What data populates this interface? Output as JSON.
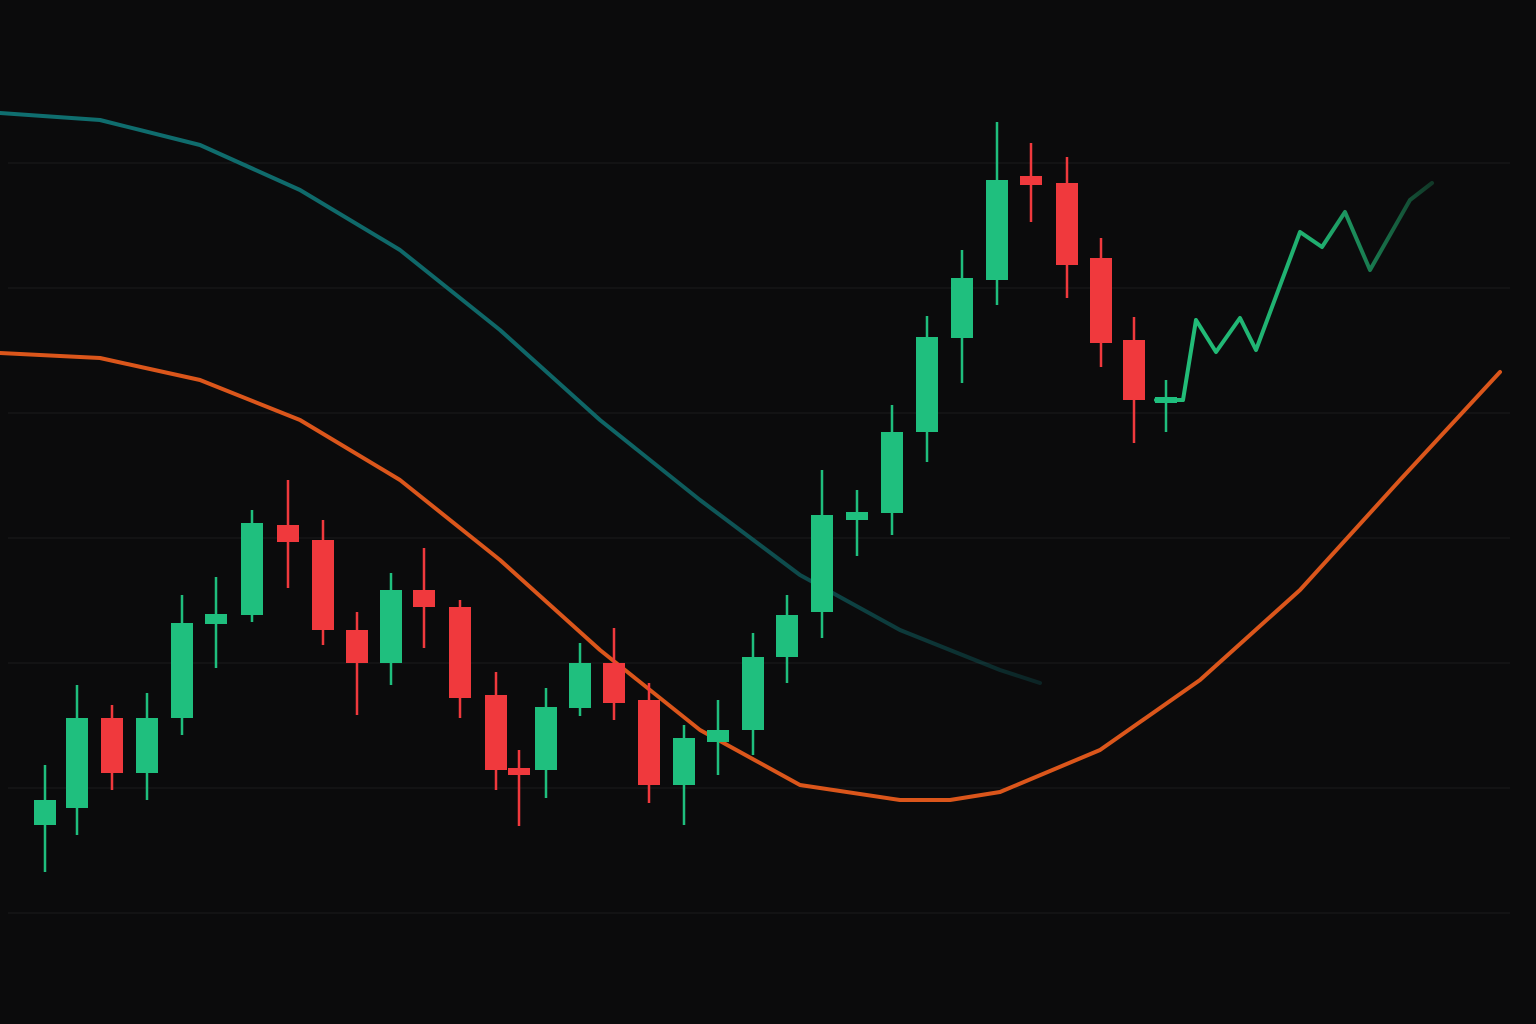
{
  "chart_data": {
    "type": "candlestick",
    "xlim": [
      0,
      1536
    ],
    "ylim": [
      0,
      1024
    ],
    "yticks": [
      111,
      236,
      361,
      486,
      611,
      736,
      861
    ],
    "grid": true,
    "up_color": "#1fbf7e",
    "down_color": "#f0393d",
    "x": [
      45,
      77,
      112,
      147,
      182,
      216,
      252,
      288,
      323,
      357,
      391,
      424,
      460,
      496,
      519,
      546,
      580,
      614,
      649,
      684,
      718,
      753,
      787,
      822,
      857,
      892,
      927,
      962,
      997,
      1031,
      1067,
      1101,
      1134,
      1166
    ],
    "open": [
      199,
      216,
      306,
      251,
      306,
      400,
      409,
      499,
      484,
      394,
      361,
      434,
      417,
      329,
      256,
      254,
      316,
      361,
      324,
      239,
      282,
      294,
      367,
      412,
      504,
      511,
      592,
      686,
      744,
      848,
      841,
      766,
      684,
      621
    ],
    "high": [
      259,
      339,
      319,
      331,
      429,
      447,
      514,
      544,
      504,
      412,
      451,
      476,
      424,
      352,
      274,
      336,
      381,
      396,
      341,
      299,
      324,
      391,
      429,
      554,
      534,
      619,
      708,
      774,
      902,
      881,
      867,
      786,
      707,
      644
    ],
    "low": [
      152,
      189,
      234,
      224,
      289,
      356,
      402,
      436,
      379,
      309,
      339,
      376,
      306,
      234,
      198,
      226,
      308,
      304,
      221,
      199,
      249,
      269,
      341,
      386,
      468,
      489,
      562,
      641,
      719,
      802,
      726,
      657,
      581,
      592
    ],
    "close": [
      224,
      306,
      251,
      306,
      401,
      410,
      501,
      482,
      394,
      361,
      434,
      417,
      326,
      254,
      249,
      317,
      361,
      321,
      239,
      286,
      294,
      367,
      409,
      509,
      512,
      592,
      687,
      746,
      844,
      839,
      759,
      681,
      624,
      627
    ],
    "overlays": [
      {
        "type": "line",
        "color": "#0f6f70",
        "fade": "end",
        "x": [
          0,
          100,
          200,
          300,
          400,
          500,
          600,
          700,
          800,
          900,
          1000,
          1040
        ],
        "values": [
          911,
          904,
          879,
          834,
          774,
          694,
          604,
          524,
          449,
          394,
          354,
          341
        ]
      },
      {
        "type": "line",
        "color": "#db561b",
        "x": [
          0,
          100,
          200,
          300,
          400,
          500,
          600,
          700,
          800,
          900,
          950,
          1000,
          1100,
          1200,
          1300,
          1400,
          1500
        ],
        "values": [
          671,
          666,
          644,
          604,
          544,
          464,
          374,
          294,
          239,
          224,
          224,
          232,
          274,
          344,
          434,
          544,
          652
        ]
      },
      {
        "type": "line",
        "color": "#22c07a",
        "fade": "end",
        "x": [
          1156,
          1183,
          1196,
          1216,
          1240,
          1256,
          1300,
          1322,
          1345,
          1370,
          1410,
          1432
        ],
        "values": [
          624,
          624,
          704,
          672,
          706,
          674,
          792,
          777,
          812,
          754,
          824,
          841
        ]
      }
    ]
  }
}
